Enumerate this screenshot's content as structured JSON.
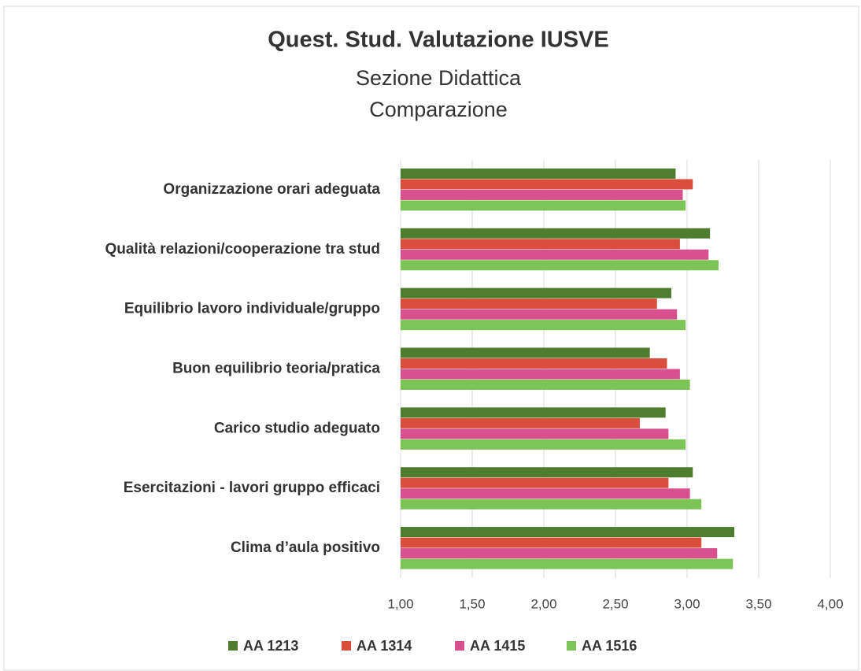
{
  "chart_data": {
    "type": "hbar",
    "title": "Quest. Stud. Valutazione IUSVE",
    "subtitle": [
      "Sezione Didattica",
      "Comparazione"
    ],
    "categories": [
      "Organizzazione orari adeguata",
      "Qualità relazioni/cooperazione tra stud",
      "Equilibrio lavoro individuale/gruppo",
      "Buon equilibrio teoria/pratica",
      "Carico studio adeguato",
      "Esercitazioni - lavori gruppo efficaci",
      "Clima  d’aula positivo"
    ],
    "series": [
      {
        "name": "AA 1213",
        "color": "#4e7d2f",
        "values": [
          2.92,
          3.16,
          2.89,
          2.74,
          2.85,
          3.04,
          3.33
        ]
      },
      {
        "name": "AA 1314",
        "color": "#d94f3b",
        "values": [
          3.04,
          2.95,
          2.79,
          2.86,
          2.67,
          2.87,
          3.1
        ]
      },
      {
        "name": "AA 1415",
        "color": "#d9508f",
        "values": [
          2.97,
          3.15,
          2.93,
          2.95,
          2.87,
          3.02,
          3.21
        ]
      },
      {
        "name": "AA 1516",
        "color": "#7dc456",
        "values": [
          2.99,
          3.22,
          2.99,
          3.02,
          2.99,
          3.1,
          3.32
        ]
      }
    ],
    "xlim": [
      1,
      4
    ],
    "xticks": [
      {
        "value": 1,
        "label": "1,00"
      },
      {
        "value": 1.5,
        "label": "1,50"
      },
      {
        "value": 2,
        "label": "2,00"
      },
      {
        "value": 2.5,
        "label": "2,50"
      },
      {
        "value": 3,
        "label": "3,00"
      },
      {
        "value": 3.5,
        "label": "3,50"
      },
      {
        "value": 4,
        "label": "4,00"
      }
    ],
    "grid": true,
    "legend": "bottom"
  }
}
